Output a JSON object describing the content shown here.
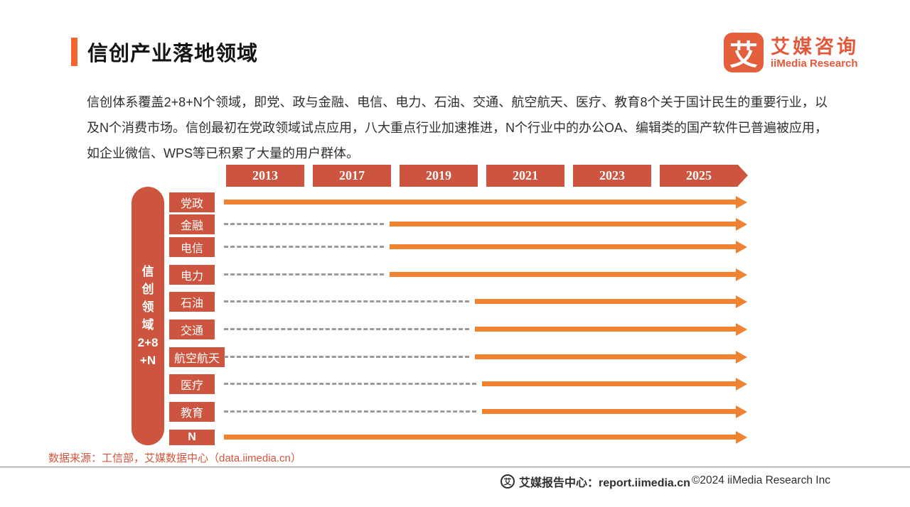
{
  "page": {
    "title": "信创产业落地领域",
    "intro": "信创体系覆盖2+8+N个领域，即党、政与金融、电信、电力、石油、交通、航空航天、医疗、教育8个关于国计民生的重要行业，以及N个消费市场。信创最初在党政领域试点应用，八大重点行业加速推进，N个行业中的办公OA、编辑类的国产软件已普遍被应用，如企业微信、WPS等已积累了大量的用户群体。"
  },
  "logo": {
    "mark": "艾",
    "name_cn": "艾媒咨询",
    "name_en": "iiMedia Research"
  },
  "chart_data": {
    "type": "timeline",
    "title": "信创产业落地领域",
    "years": [
      "2013",
      "2017",
      "2019",
      "2021",
      "2023",
      "2025"
    ],
    "axis_label": "信创领域2+8+N",
    "axis_label_lines": [
      "信",
      "创",
      "领",
      "域",
      "2+8",
      "+N"
    ],
    "rows": [
      {
        "label": "党政",
        "solid_start_year": "2013",
        "dashed_lead": false
      },
      {
        "label": "金融",
        "solid_start_year": "2019",
        "dashed_lead": true
      },
      {
        "label": "电信",
        "solid_start_year": "2019",
        "dashed_lead": true
      },
      {
        "label": "电力",
        "solid_start_year": "2019",
        "dashed_lead": true
      },
      {
        "label": "石油",
        "solid_start_year": "2021",
        "dashed_lead": true
      },
      {
        "label": "交通",
        "solid_start_year": "2021",
        "dashed_lead": true
      },
      {
        "label": "航空航天",
        "solid_start_year": "2021",
        "dashed_lead": true
      },
      {
        "label": "医疗",
        "solid_start_year": "2021",
        "dashed_lead": true
      },
      {
        "label": "教育",
        "solid_start_year": "2021",
        "dashed_lead": true
      },
      {
        "label": "N",
        "solid_start_year": "2013",
        "dashed_lead": false
      }
    ],
    "colors": {
      "block": "#cd5540",
      "arrow": "#f08230",
      "dash": "#9a9a9a"
    },
    "legend_position": "none",
    "grid": false
  },
  "footer": {
    "source": "数据来源：工信部，艾媒数据中心（data.iimedia.cn）",
    "report_center": "艾媒报告中心：report.iimedia.cn",
    "copyright": "©2024  iiMedia Research  Inc"
  }
}
